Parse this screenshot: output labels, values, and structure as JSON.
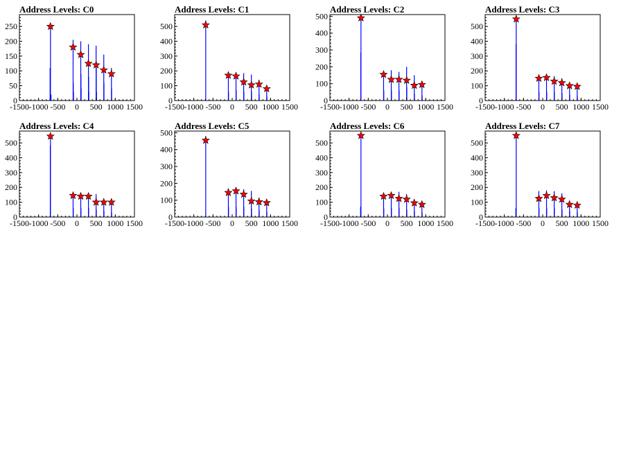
{
  "colors": {
    "histogram": "#0000ff",
    "peak_marker": "#ff0000",
    "axis": "#000000"
  },
  "chart_data": [
    {
      "type": "bar",
      "title": "Address Levels: C0",
      "xlim": [
        -1500,
        1500
      ],
      "ylim": [
        0,
        290
      ],
      "xticks": [
        -1500,
        -1000,
        -500,
        0,
        500,
        1000,
        1500
      ],
      "yticks": [
        0,
        50,
        100,
        150,
        200,
        250
      ],
      "bins": [
        [
          -700,
          110
        ],
        [
          -690,
          250
        ],
        [
          -675,
          20
        ],
        [
          -100,
          205
        ],
        [
          -95,
          60
        ],
        [
          -90,
          30
        ],
        [
          100,
          200
        ],
        [
          105,
          90
        ],
        [
          110,
          40
        ],
        [
          300,
          190
        ],
        [
          305,
          80
        ],
        [
          310,
          30
        ],
        [
          500,
          185
        ],
        [
          505,
          110
        ],
        [
          510,
          30
        ],
        [
          700,
          155
        ],
        [
          705,
          60
        ],
        [
          900,
          110
        ],
        [
          905,
          40
        ]
      ],
      "markers": [
        {
          "x": -690,
          "y": 250
        },
        {
          "x": -100,
          "y": 180
        },
        {
          "x": 100,
          "y": 155
        },
        {
          "x": 300,
          "y": 125
        },
        {
          "x": 500,
          "y": 120
        },
        {
          "x": 700,
          "y": 103
        },
        {
          "x": 900,
          "y": 90
        }
      ]
    },
    {
      "type": "bar",
      "title": "Address Levels: C1",
      "xlim": [
        -1500,
        1500
      ],
      "ylim": [
        0,
        580
      ],
      "xticks": [
        -1500,
        -1000,
        -500,
        0,
        500,
        1000,
        1500
      ],
      "yticks": [
        0,
        100,
        200,
        300,
        400,
        500
      ],
      "bins": [
        [
          -690,
          540
        ],
        [
          -100,
          175
        ],
        [
          -95,
          60
        ],
        [
          100,
          190
        ],
        [
          105,
          70
        ],
        [
          300,
          185
        ],
        [
          305,
          60
        ],
        [
          500,
          175
        ],
        [
          505,
          60
        ],
        [
          700,
          140
        ],
        [
          705,
          40
        ],
        [
          900,
          100
        ],
        [
          905,
          30
        ]
      ],
      "markers": [
        {
          "x": -690,
          "y": 510
        },
        {
          "x": -100,
          "y": 170
        },
        {
          "x": 100,
          "y": 165
        },
        {
          "x": 300,
          "y": 125
        },
        {
          "x": 500,
          "y": 105
        },
        {
          "x": 700,
          "y": 110
        },
        {
          "x": 900,
          "y": 80
        }
      ]
    },
    {
      "type": "bar",
      "title": "Address Levels: C2",
      "xlim": [
        -1500,
        1500
      ],
      "ylim": [
        0,
        510
      ],
      "xticks": [
        -1500,
        -1000,
        -500,
        0,
        500,
        1000,
        1500
      ],
      "yticks": [
        0,
        100,
        200,
        300,
        400,
        500
      ],
      "bins": [
        [
          -695,
          285
        ],
        [
          -690,
          490
        ],
        [
          -100,
          160
        ],
        [
          -95,
          60
        ],
        [
          100,
          180
        ],
        [
          105,
          60
        ],
        [
          300,
          170
        ],
        [
          305,
          60
        ],
        [
          500,
          200
        ],
        [
          505,
          80
        ],
        [
          700,
          150
        ],
        [
          705,
          40
        ],
        [
          900,
          110
        ],
        [
          905,
          30
        ]
      ],
      "markers": [
        {
          "x": -690,
          "y": 490
        },
        {
          "x": -100,
          "y": 155
        },
        {
          "x": 100,
          "y": 125
        },
        {
          "x": 300,
          "y": 125
        },
        {
          "x": 500,
          "y": 120
        },
        {
          "x": 700,
          "y": 90
        },
        {
          "x": 900,
          "y": 95
        }
      ]
    },
    {
      "type": "bar",
      "title": "Address Levels: C3",
      "xlim": [
        -1500,
        1500
      ],
      "ylim": [
        0,
        580
      ],
      "xticks": [
        -1500,
        -1000,
        -500,
        0,
        500,
        1000,
        1500
      ],
      "yticks": [
        0,
        100,
        200,
        300,
        400,
        500
      ],
      "bins": [
        [
          -695,
          380
        ],
        [
          -690,
          560
        ],
        [
          -100,
          175
        ],
        [
          -95,
          60
        ],
        [
          100,
          170
        ],
        [
          105,
          60
        ],
        [
          300,
          165
        ],
        [
          305,
          60
        ],
        [
          500,
          150
        ],
        [
          505,
          50
        ],
        [
          700,
          120
        ],
        [
          705,
          40
        ],
        [
          900,
          110
        ],
        [
          905,
          30
        ]
      ],
      "markers": [
        {
          "x": -690,
          "y": 550
        },
        {
          "x": -100,
          "y": 150
        },
        {
          "x": 100,
          "y": 155
        },
        {
          "x": 300,
          "y": 130
        },
        {
          "x": 500,
          "y": 120
        },
        {
          "x": 700,
          "y": 100
        },
        {
          "x": 900,
          "y": 95
        }
      ]
    },
    {
      "type": "bar",
      "title": "Address Levels: C4",
      "xlim": [
        -1500,
        1500
      ],
      "ylim": [
        0,
        580
      ],
      "xticks": [
        -1500,
        -1000,
        -500,
        0,
        500,
        1000,
        1500
      ],
      "yticks": [
        0,
        100,
        200,
        300,
        400,
        500
      ],
      "bins": [
        [
          -695,
          480
        ],
        [
          -690,
          560
        ],
        [
          -100,
          150
        ],
        [
          -95,
          60
        ],
        [
          100,
          165
        ],
        [
          105,
          60
        ],
        [
          300,
          160
        ],
        [
          305,
          60
        ],
        [
          500,
          155
        ],
        [
          505,
          50
        ],
        [
          700,
          115
        ],
        [
          705,
          40
        ],
        [
          900,
          110
        ],
        [
          905,
          30
        ]
      ],
      "markers": [
        {
          "x": -690,
          "y": 545
        },
        {
          "x": -100,
          "y": 145
        },
        {
          "x": 100,
          "y": 140
        },
        {
          "x": 300,
          "y": 140
        },
        {
          "x": 500,
          "y": 100
        },
        {
          "x": 700,
          "y": 100
        },
        {
          "x": 900,
          "y": 100
        }
      ]
    },
    {
      "type": "bar",
      "title": "Address Levels: C5",
      "xlim": [
        -1500,
        1500
      ],
      "ylim": [
        0,
        510
      ],
      "xticks": [
        -1500,
        -1000,
        -500,
        0,
        500,
        1000,
        1500
      ],
      "yticks": [
        0,
        100,
        200,
        300,
        400,
        500
      ],
      "bins": [
        [
          -690,
          480
        ],
        [
          -100,
          170
        ],
        [
          -95,
          60
        ],
        [
          100,
          165
        ],
        [
          105,
          60
        ],
        [
          300,
          165
        ],
        [
          305,
          60
        ],
        [
          500,
          155
        ],
        [
          505,
          50
        ],
        [
          700,
          115
        ],
        [
          705,
          40
        ],
        [
          900,
          100
        ],
        [
          905,
          30
        ]
      ],
      "markers": [
        {
          "x": -690,
          "y": 455
        },
        {
          "x": -100,
          "y": 145
        },
        {
          "x": 100,
          "y": 155
        },
        {
          "x": 300,
          "y": 135
        },
        {
          "x": 500,
          "y": 95
        },
        {
          "x": 700,
          "y": 90
        },
        {
          "x": 900,
          "y": 85
        }
      ]
    },
    {
      "type": "bar",
      "title": "Address Levels: C6",
      "xlim": [
        -1500,
        1500
      ],
      "ylim": [
        0,
        580
      ],
      "xticks": [
        -1500,
        -1000,
        -500,
        0,
        500,
        1000,
        1500
      ],
      "yticks": [
        0,
        100,
        200,
        300,
        400,
        500
      ],
      "bins": [
        [
          -700,
          70
        ],
        [
          -690,
          560
        ],
        [
          -100,
          160
        ],
        [
          -95,
          60
        ],
        [
          100,
          165
        ],
        [
          105,
          60
        ],
        [
          300,
          170
        ],
        [
          305,
          60
        ],
        [
          500,
          155
        ],
        [
          505,
          50
        ],
        [
          700,
          120
        ],
        [
          705,
          40
        ],
        [
          900,
          95
        ],
        [
          905,
          30
        ]
      ],
      "markers": [
        {
          "x": -690,
          "y": 550
        },
        {
          "x": -100,
          "y": 140
        },
        {
          "x": 100,
          "y": 145
        },
        {
          "x": 300,
          "y": 125
        },
        {
          "x": 500,
          "y": 120
        },
        {
          "x": 700,
          "y": 95
        },
        {
          "x": 900,
          "y": 85
        }
      ]
    },
    {
      "type": "bar",
      "title": "Address Levels: C7",
      "xlim": [
        -1500,
        1500
      ],
      "ylim": [
        0,
        580
      ],
      "xticks": [
        -1500,
        -1000,
        -500,
        0,
        500,
        1000,
        1500
      ],
      "yticks": [
        0,
        100,
        200,
        300,
        400,
        500
      ],
      "bins": [
        [
          -700,
          60
        ],
        [
          -690,
          560
        ],
        [
          -100,
          175
        ],
        [
          -95,
          60
        ],
        [
          100,
          180
        ],
        [
          105,
          60
        ],
        [
          300,
          175
        ],
        [
          305,
          60
        ],
        [
          500,
          160
        ],
        [
          505,
          50
        ],
        [
          700,
          110
        ],
        [
          705,
          40
        ],
        [
          900,
          100
        ],
        [
          905,
          30
        ]
      ],
      "markers": [
        {
          "x": -690,
          "y": 550
        },
        {
          "x": -100,
          "y": 125
        },
        {
          "x": 100,
          "y": 145
        },
        {
          "x": 300,
          "y": 130
        },
        {
          "x": 500,
          "y": 120
        },
        {
          "x": 700,
          "y": 85
        },
        {
          "x": 900,
          "y": 80
        }
      ]
    }
  ]
}
